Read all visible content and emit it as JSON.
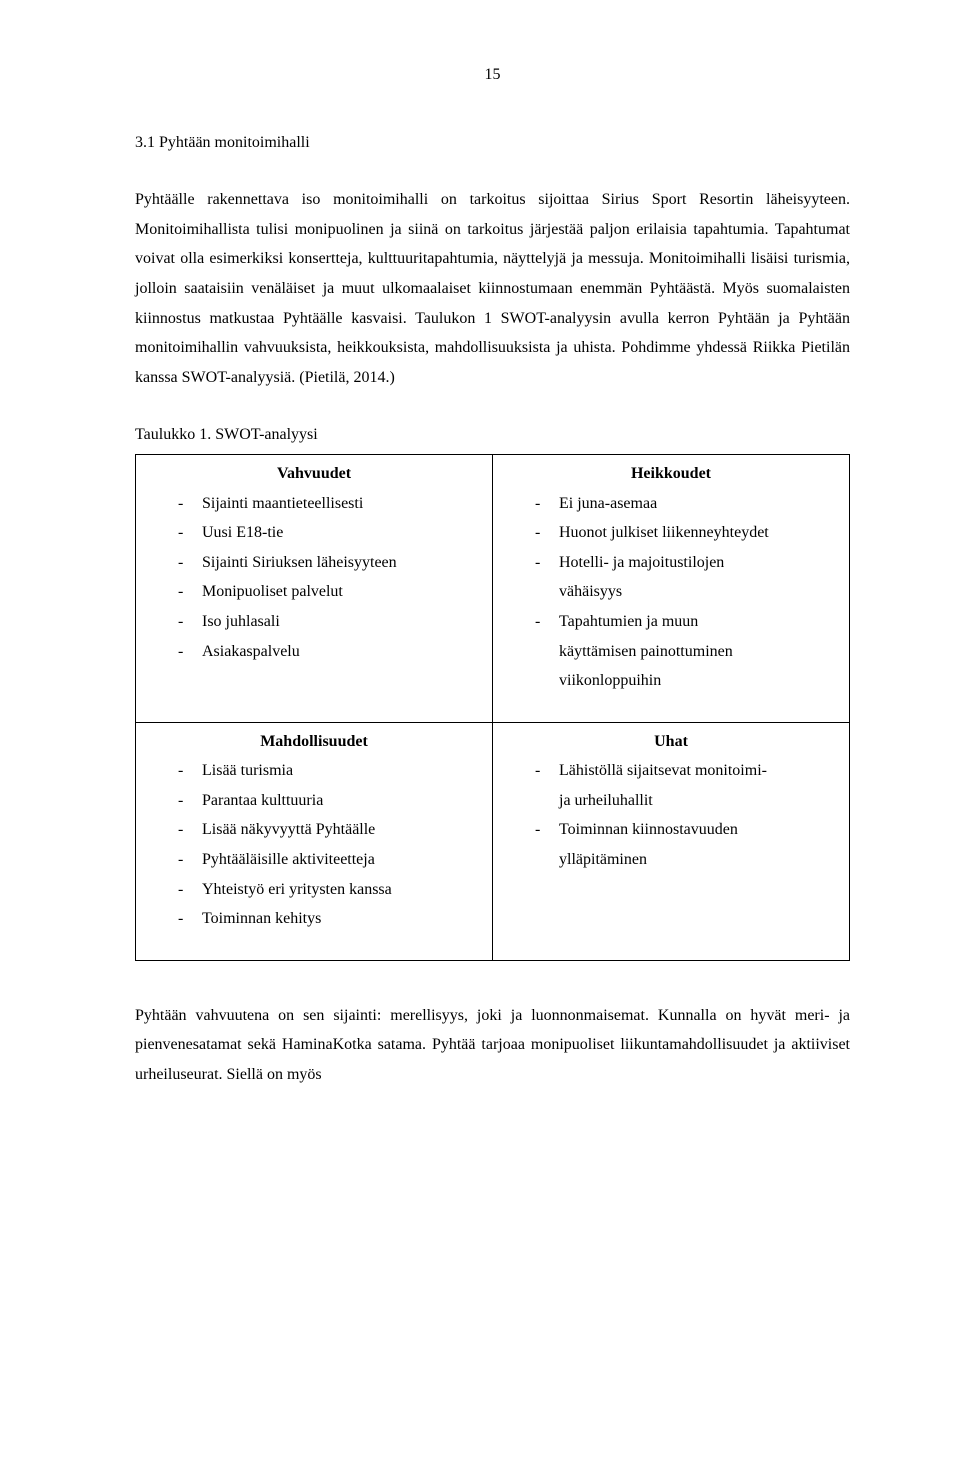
{
  "page_number": "15",
  "section_heading": "3.1  Pyhtään monitoimihalli",
  "paragraph1": "Pyhtäälle rakennettava iso monitoimihalli on tarkoitus sijoittaa Sirius Sport Resortin läheisyyteen. Monitoimihallista tulisi monipuolinen ja siinä on tarkoitus järjestää paljon erilaisia tapahtumia. Tapahtumat voivat olla esimerkiksi konsertteja, kulttuuritapahtumia, näyttelyjä ja messuja. Monitoimihalli lisäisi turismia, jolloin saataisiin venäläiset ja muut ulkomaalaiset kiinnostumaan enemmän Pyhtäästä. Myös suomalaisten kiinnostus matkustaa Pyhtäälle kasvaisi. Taulukon 1 SWOT-analyysin avulla kerron Pyhtään ja Pyhtään monitoimihallin vahvuuksista, heikkouksista, mahdollisuuksista ja uhista. Pohdimme yhdessä Riikka Pietilän kanssa SWOT-analyysiä. (Pietilä, 2014.)",
  "table_caption": "Taulukko 1. SWOT-analyysi",
  "swot": {
    "strengths": {
      "title": "Vahvuudet",
      "items": [
        "Sijainti maantieteellisesti",
        "Uusi E18-tie",
        "Sijainti Siriuksen läheisyyteen",
        "Monipuoliset palvelut",
        "Iso juhlasali",
        "Asiakaspalvelu"
      ]
    },
    "weaknesses": {
      "title": "Heikkoudet",
      "items": [
        "Ei juna-asemaa",
        "Huonot julkiset liikenneyhteydet",
        "Hotelli- ja majoitustilojen",
        "Tapahtumien ja muun"
      ],
      "wrap1": "vähäisyys",
      "wrap2a": "käyttämisen painottuminen",
      "wrap2b": "viikonloppuihin"
    },
    "opportunities": {
      "title": "Mahdollisuudet",
      "items": [
        "Lisää turismia",
        "Parantaa kulttuuria",
        "Lisää näkyvyyttä Pyhtäälle",
        "Pyhtääläisille aktiviteetteja",
        "Yhteistyö eri yritysten kanssa",
        "Toiminnan kehitys"
      ]
    },
    "threats": {
      "title": "Uhat",
      "items": [
        "Lähistöllä sijaitsevat monitoimi-",
        "Toiminnan kiinnostavuuden"
      ],
      "wrap1": "ja urheiluhallit",
      "wrap2": "ylläpitäminen"
    }
  },
  "paragraph2": "Pyhtään vahvuutena on sen sijainti: merellisyys, joki ja luonnonmaisemat. Kunnalla on hyvät meri- ja pienvenesatamat sekä HaminaKotka satama. Pyhtää tarjoaa monipuoliset liikuntamahdollisuudet ja aktiiviset urheiluseurat. Siellä on myös"
}
